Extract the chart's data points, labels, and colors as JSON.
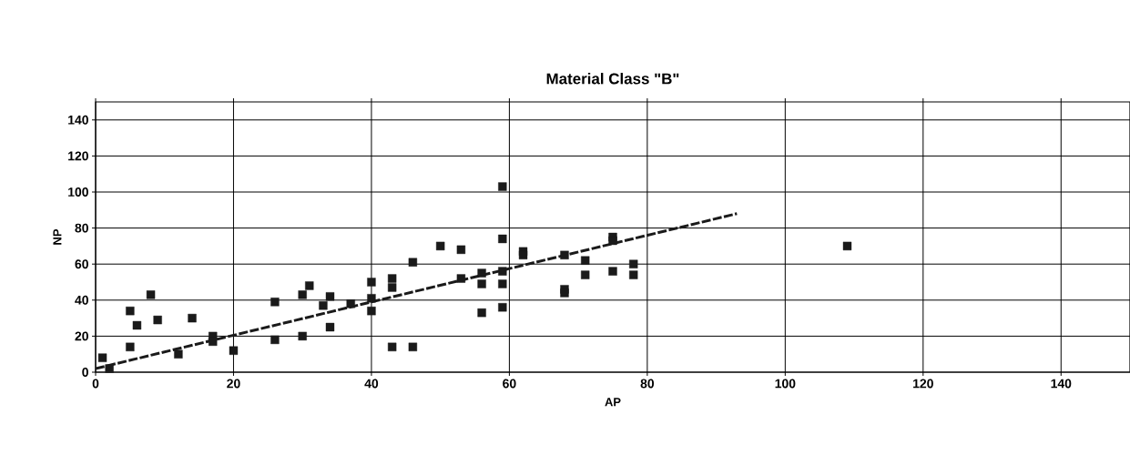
{
  "chart_data": {
    "type": "scatter",
    "title": "Material Class \"B\"",
    "xlabel": "AP",
    "ylabel": "NP",
    "xlim": [
      0,
      150
    ],
    "ylim": [
      0,
      150
    ],
    "xticks": [
      0,
      20,
      40,
      60,
      80,
      100,
      120,
      140
    ],
    "yticks": [
      0,
      20,
      40,
      60,
      80,
      100,
      120,
      140
    ],
    "grid": true,
    "series": [
      {
        "color": "#1a1a1a",
        "marker": "square",
        "x": [
          1,
          2,
          5,
          5,
          6,
          8,
          9,
          12,
          14,
          17,
          17,
          20,
          26,
          26,
          30,
          30,
          31,
          33,
          34,
          34,
          37,
          40,
          40,
          40,
          43,
          43,
          43,
          46,
          46,
          50,
          53,
          53,
          56,
          56,
          56,
          59,
          59,
          59,
          59,
          59,
          62,
          62,
          68,
          68,
          68,
          71,
          71,
          75,
          75,
          75,
          78,
          78,
          109
        ],
        "values": [
          8,
          2,
          34,
          14,
          26,
          43,
          29,
          10,
          30,
          20,
          17,
          12,
          39,
          18,
          20,
          43,
          48,
          37,
          42,
          25,
          38,
          50,
          41,
          34,
          52,
          47,
          14,
          14,
          61,
          70,
          68,
          52,
          55,
          49,
          33,
          103,
          74,
          56,
          49,
          36,
          67,
          65,
          65,
          46,
          44,
          62,
          54,
          75,
          73,
          56,
          60,
          54,
          70
        ]
      },
      {
        "type": "line",
        "color": "#1a1a1a",
        "marker": "none",
        "line_style": "dashed",
        "x": [
          0,
          93
        ],
        "values": [
          2,
          88
        ]
      }
    ]
  }
}
